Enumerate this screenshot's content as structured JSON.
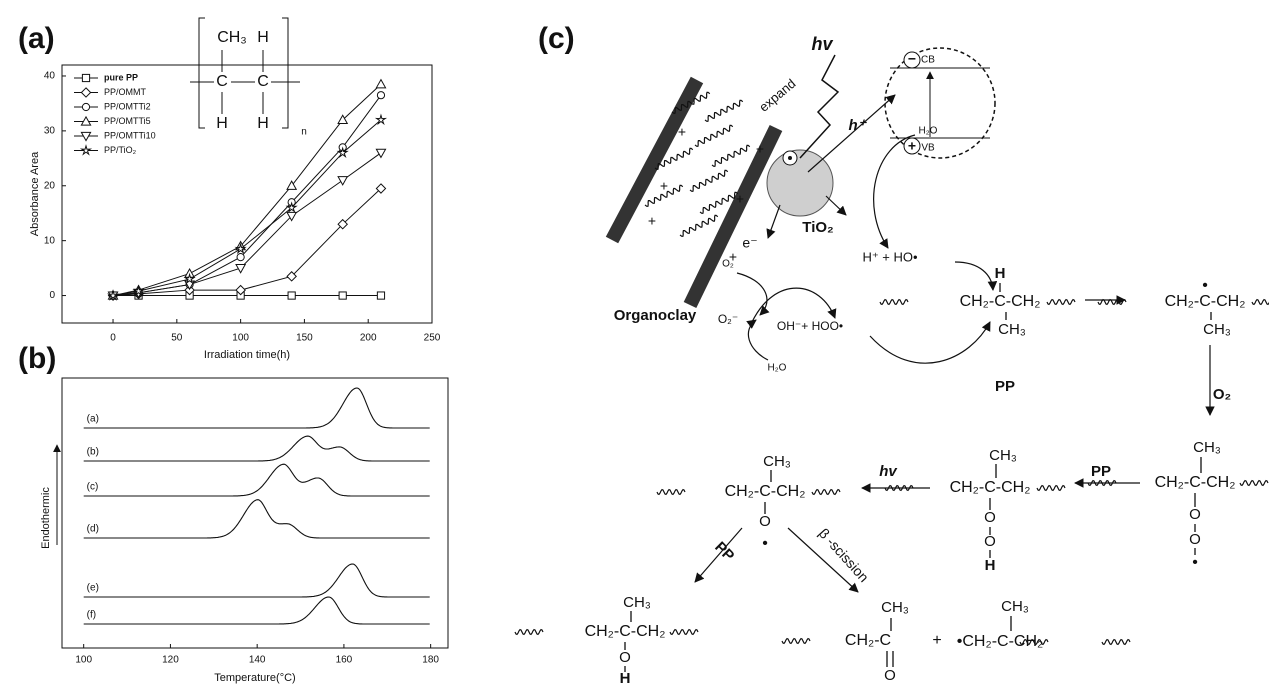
{
  "panel_labels": [
    "(a)",
    "(b)",
    "(c)"
  ],
  "chart_data": [
    {
      "type": "line",
      "x": [
        0,
        20,
        60,
        100,
        140,
        180,
        210
      ],
      "xlim": [
        -40,
        250
      ],
      "ylim": [
        -5,
        42
      ],
      "xticks": [
        0,
        50,
        100,
        150,
        200,
        250
      ],
      "yticks": [
        0,
        10,
        20,
        30,
        40
      ],
      "x_label": "Irradiation time(h)",
      "y_label": "Absorbance Area",
      "color": "#111111",
      "legend": "upper left",
      "series": [
        {
          "name": "pure PP",
          "marker": "square",
          "values": [
            0,
            0,
            0,
            0,
            0,
            0,
            0
          ]
        },
        {
          "name": "PP/OMMT",
          "marker": "diamond",
          "values": [
            0,
            0.3,
            1,
            1,
            3.5,
            13,
            19.5
          ]
        },
        {
          "name": "PP/OMTTi2",
          "marker": "circle",
          "values": [
            0,
            0.5,
            2,
            7,
            17,
            27,
            36.5
          ]
        },
        {
          "name": "PP/OMTTi5",
          "marker": "triangle",
          "values": [
            0,
            1,
            4,
            9,
            20,
            32,
            38.5
          ]
        },
        {
          "name": "PP/OMTTi10",
          "marker": "down-triangle",
          "values": [
            0,
            0.5,
            2,
            5,
            14.5,
            21,
            26
          ]
        },
        {
          "name": "PP/TiO₂",
          "marker": "star",
          "values": [
            0,
            0.8,
            3,
            8.5,
            16,
            26,
            32
          ]
        }
      ],
      "annotations": [
        "CH₃",
        "H",
        "C",
        "C",
        "H",
        "H",
        "n"
      ]
    },
    {
      "type": "dsc",
      "xlim": [
        95,
        184
      ],
      "xticks": [
        100,
        120,
        140,
        160,
        180
      ],
      "x_label": "Temperature(°C)",
      "y_label": "Endothermic",
      "color": "#111111",
      "series": [
        {
          "name": "(a)",
          "peaks": [
            163
          ]
        },
        {
          "name": "(b)",
          "peaks": [
            151.5,
            159
          ]
        },
        {
          "name": "(c)",
          "peaks": [
            146,
            154
          ]
        },
        {
          "name": "(d)",
          "peaks": [
            140,
            147
          ]
        },
        {
          "name": "(e)",
          "peaks": [
            162
          ]
        },
        {
          "name": "(f)",
          "peaks": [
            156.5
          ]
        }
      ]
    }
  ],
  "diagram": {
    "labels": [
      "hv",
      "expand",
      "CB",
      "VB",
      "−",
      "+",
      "h⁺",
      "TiO₂",
      "e⁻",
      "H₂O",
      "O₂",
      "H⁺ + HO•",
      "Organoclay",
      "O₂⁻",
      "OH⁻+ HOO•",
      "H₂O",
      "H",
      "CH₂-C-CH₂",
      "CH₃",
      "PP",
      "•",
      "CH₂-C-CH₂",
      "CH₃",
      "O₂",
      "CH₃",
      "CH₂-C-CH₂",
      "O",
      "O",
      "•",
      "PP",
      "CH₃",
      "CH₂-C-CH₂",
      "O",
      "O",
      "H",
      "hv",
      "CH₃",
      "CH₂-C-CH₂",
      "O",
      "•",
      "PP",
      "β -scission",
      "CH₃",
      "CH₂-C-CH₂",
      "O",
      "H",
      "CH₃",
      "CH₂-C",
      "O",
      "+",
      "CH₃",
      "•CH₂-C-CH₂",
      "+",
      "+",
      "+",
      "+",
      "+",
      "+"
    ]
  }
}
